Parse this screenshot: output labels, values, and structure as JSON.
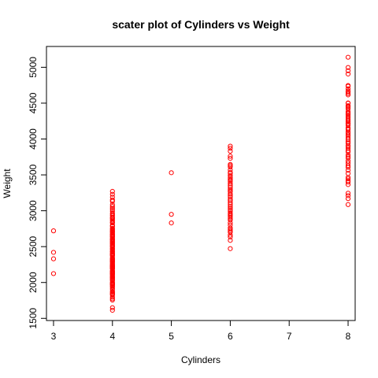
{
  "chart_data": {
    "type": "scatter",
    "title": "scater plot of Cylinders vs Weight",
    "xlabel": "Cylinders",
    "ylabel": "Weight",
    "xlim": [
      2.88,
      8.12
    ],
    "ylim": [
      1470,
      5290
    ],
    "xticks": [
      3,
      4,
      5,
      6,
      7,
      8
    ],
    "yticks": [
      1500,
      2000,
      2500,
      3000,
      3500,
      4000,
      4500,
      5000
    ],
    "grid": false,
    "legend": "none",
    "point_color": "#ff0000",
    "series": [
      {
        "points": [
          [
            3,
            2124
          ],
          [
            3,
            2330
          ],
          [
            3,
            2420
          ],
          [
            3,
            2720
          ],
          [
            4,
            1613
          ],
          [
            4,
            1649
          ],
          [
            4,
            1755
          ],
          [
            4,
            1773
          ],
          [
            4,
            1795
          ],
          [
            4,
            1825
          ],
          [
            4,
            1835
          ],
          [
            4,
            1845
          ],
          [
            4,
            1850
          ],
          [
            4,
            1867
          ],
          [
            4,
            1875
          ],
          [
            4,
            1900
          ],
          [
            4,
            1915
          ],
          [
            4,
            1937
          ],
          [
            4,
            1950
          ],
          [
            4,
            1965
          ],
          [
            4,
            1968
          ],
          [
            4,
            1980
          ],
          [
            4,
            1985
          ],
          [
            4,
            1995
          ],
          [
            4,
            2000
          ],
          [
            4,
            2020
          ],
          [
            4,
            2035
          ],
          [
            4,
            2045
          ],
          [
            4,
            2050
          ],
          [
            4,
            2065
          ],
          [
            4,
            2070
          ],
          [
            4,
            2075
          ],
          [
            4,
            2085
          ],
          [
            4,
            2100
          ],
          [
            4,
            2110
          ],
          [
            4,
            2120
          ],
          [
            4,
            2125
          ],
          [
            4,
            2130
          ],
          [
            4,
            2135
          ],
          [
            4,
            2145
          ],
          [
            4,
            2155
          ],
          [
            4,
            2160
          ],
          [
            4,
            2164
          ],
          [
            4,
            2188
          ],
          [
            4,
            2190
          ],
          [
            4,
            2200
          ],
          [
            4,
            2205
          ],
          [
            4,
            2215
          ],
          [
            4,
            2220
          ],
          [
            4,
            2226
          ],
          [
            4,
            2228
          ],
          [
            4,
            2234
          ],
          [
            4,
            2245
          ],
          [
            4,
            2254
          ],
          [
            4,
            2265
          ],
          [
            4,
            2278
          ],
          [
            4,
            2290
          ],
          [
            4,
            2295
          ],
          [
            4,
            2300
          ],
          [
            4,
            2310
          ],
          [
            4,
            2320
          ],
          [
            4,
            2330
          ],
          [
            4,
            2335
          ],
          [
            4,
            2350
          ],
          [
            4,
            2370
          ],
          [
            4,
            2380
          ],
          [
            4,
            2385
          ],
          [
            4,
            2395
          ],
          [
            4,
            2400
          ],
          [
            4,
            2405
          ],
          [
            4,
            2420
          ],
          [
            4,
            2430
          ],
          [
            4,
            2434
          ],
          [
            4,
            2450
          ],
          [
            4,
            2464
          ],
          [
            4,
            2470
          ],
          [
            4,
            2490
          ],
          [
            4,
            2500
          ],
          [
            4,
            2510
          ],
          [
            4,
            2515
          ],
          [
            4,
            2525
          ],
          [
            4,
            2540
          ],
          [
            4,
            2545
          ],
          [
            4,
            2560
          ],
          [
            4,
            2565
          ],
          [
            4,
            2575
          ],
          [
            4,
            2585
          ],
          [
            4,
            2595
          ],
          [
            4,
            2600
          ],
          [
            4,
            2605
          ],
          [
            4,
            2620
          ],
          [
            4,
            2635
          ],
          [
            4,
            2640
          ],
          [
            4,
            2648
          ],
          [
            4,
            2660
          ],
          [
            4,
            2670
          ],
          [
            4,
            2672
          ],
          [
            4,
            2690
          ],
          [
            4,
            2700
          ],
          [
            4,
            2711
          ],
          [
            4,
            2720
          ],
          [
            4,
            2735
          ],
          [
            4,
            2745
          ],
          [
            4,
            2755
          ],
          [
            4,
            2780
          ],
          [
            4,
            2790
          ],
          [
            4,
            2800
          ],
          [
            4,
            2830
          ],
          [
            4,
            2835
          ],
          [
            4,
            2855
          ],
          [
            4,
            2870
          ],
          [
            4,
            2890
          ],
          [
            4,
            2900
          ],
          [
            4,
            2910
          ],
          [
            4,
            2930
          ],
          [
            4,
            2950
          ],
          [
            4,
            2965
          ],
          [
            4,
            2990
          ],
          [
            4,
            3015
          ],
          [
            4,
            3035
          ],
          [
            4,
            3060
          ],
          [
            4,
            3085
          ],
          [
            4,
            3130
          ],
          [
            4,
            3150
          ],
          [
            4,
            3190
          ],
          [
            4,
            3230
          ],
          [
            4,
            3270
          ],
          [
            5,
            2830
          ],
          [
            5,
            2950
          ],
          [
            5,
            3530
          ],
          [
            6,
            2472
          ],
          [
            6,
            2587
          ],
          [
            6,
            2635
          ],
          [
            6,
            2660
          ],
          [
            6,
            2700
          ],
          [
            6,
            2720
          ],
          [
            6,
            2740
          ],
          [
            6,
            2760
          ],
          [
            6,
            2800
          ],
          [
            6,
            2830
          ],
          [
            6,
            2870
          ],
          [
            6,
            2890
          ],
          [
            6,
            2910
          ],
          [
            6,
            2930
          ],
          [
            6,
            2950
          ],
          [
            6,
            2965
          ],
          [
            6,
            2990
          ],
          [
            6,
            3012
          ],
          [
            6,
            3035
          ],
          [
            6,
            3060
          ],
          [
            6,
            3085
          ],
          [
            6,
            3110
          ],
          [
            6,
            3139
          ],
          [
            6,
            3160
          ],
          [
            6,
            3190
          ],
          [
            6,
            3210
          ],
          [
            6,
            3233
          ],
          [
            6,
            3265
          ],
          [
            6,
            3282
          ],
          [
            6,
            3302
          ],
          [
            6,
            3329
          ],
          [
            6,
            3353
          ],
          [
            6,
            3380
          ],
          [
            6,
            3410
          ],
          [
            6,
            3425
          ],
          [
            6,
            3445
          ],
          [
            6,
            3465
          ],
          [
            6,
            3490
          ],
          [
            6,
            3520
          ],
          [
            6,
            3535
          ],
          [
            6,
            3570
          ],
          [
            6,
            3610
          ],
          [
            6,
            3630
          ],
          [
            6,
            3645
          ],
          [
            6,
            3730
          ],
          [
            6,
            3760
          ],
          [
            6,
            3830
          ],
          [
            6,
            3870
          ],
          [
            6,
            3900
          ],
          [
            8,
            3086
          ],
          [
            8,
            3170
          ],
          [
            8,
            3210
          ],
          [
            8,
            3245
          ],
          [
            8,
            3365
          ],
          [
            8,
            3400
          ],
          [
            8,
            3420
          ],
          [
            8,
            3445
          ],
          [
            8,
            3465
          ],
          [
            8,
            3520
          ],
          [
            8,
            3565
          ],
          [
            8,
            3605
          ],
          [
            8,
            3630
          ],
          [
            8,
            3664
          ],
          [
            8,
            3693
          ],
          [
            8,
            3735
          ],
          [
            8,
            3755
          ],
          [
            8,
            3777
          ],
          [
            8,
            3820
          ],
          [
            8,
            3840
          ],
          [
            8,
            3870
          ],
          [
            8,
            3892
          ],
          [
            8,
            3907
          ],
          [
            8,
            3940
          ],
          [
            8,
            3962
          ],
          [
            8,
            3988
          ],
          [
            8,
            4012
          ],
          [
            8,
            4042
          ],
          [
            8,
            4060
          ],
          [
            8,
            4080
          ],
          [
            8,
            4098
          ],
          [
            8,
            4129
          ],
          [
            8,
            4140
          ],
          [
            8,
            4154
          ],
          [
            8,
            4190
          ],
          [
            8,
            4209
          ],
          [
            8,
            4215
          ],
          [
            8,
            4237
          ],
          [
            8,
            4257
          ],
          [
            8,
            4274
          ],
          [
            8,
            4294
          ],
          [
            8,
            4312
          ],
          [
            8,
            4335
          ],
          [
            8,
            4354
          ],
          [
            8,
            4363
          ],
          [
            8,
            4382
          ],
          [
            8,
            4422
          ],
          [
            8,
            4440
          ],
          [
            8,
            4456
          ],
          [
            8,
            4464
          ],
          [
            8,
            4499
          ],
          [
            8,
            4502
          ],
          [
            8,
            4615
          ],
          [
            8,
            4633
          ],
          [
            8,
            4654
          ],
          [
            8,
            4668
          ],
          [
            8,
            4699
          ],
          [
            8,
            4735
          ],
          [
            8,
            4746
          ],
          [
            8,
            4906
          ],
          [
            8,
            4952
          ],
          [
            8,
            4997
          ],
          [
            8,
            5140
          ]
        ]
      }
    ]
  }
}
